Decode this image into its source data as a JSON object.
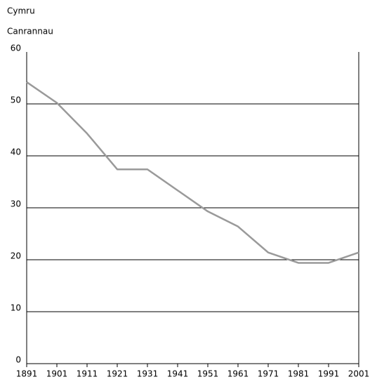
{
  "chart_data": {
    "type": "line",
    "title": "Cymru",
    "y_label": "Canrannau",
    "x": [
      1891,
      1901,
      1911,
      1921,
      1931,
      1951,
      1961,
      1971,
      1981,
      1991,
      2001
    ],
    "series": [
      {
        "color": "#9a9a9a",
        "values": [
          54.2,
          50.2,
          44.3,
          37.4,
          37.4,
          29.3,
          26.4,
          21.4,
          19.4,
          19.4,
          21.4
        ]
      }
    ],
    "xlim": [
      1891,
      2001
    ],
    "xticks": [
      1891,
      1901,
      1911,
      1921,
      1931,
      1941,
      1951,
      1961,
      1971,
      1981,
      1991,
      2001
    ],
    "ylim": [
      0,
      60
    ],
    "yticks": [
      0,
      10,
      20,
      30,
      40,
      50,
      60
    ],
    "grid": true
  }
}
